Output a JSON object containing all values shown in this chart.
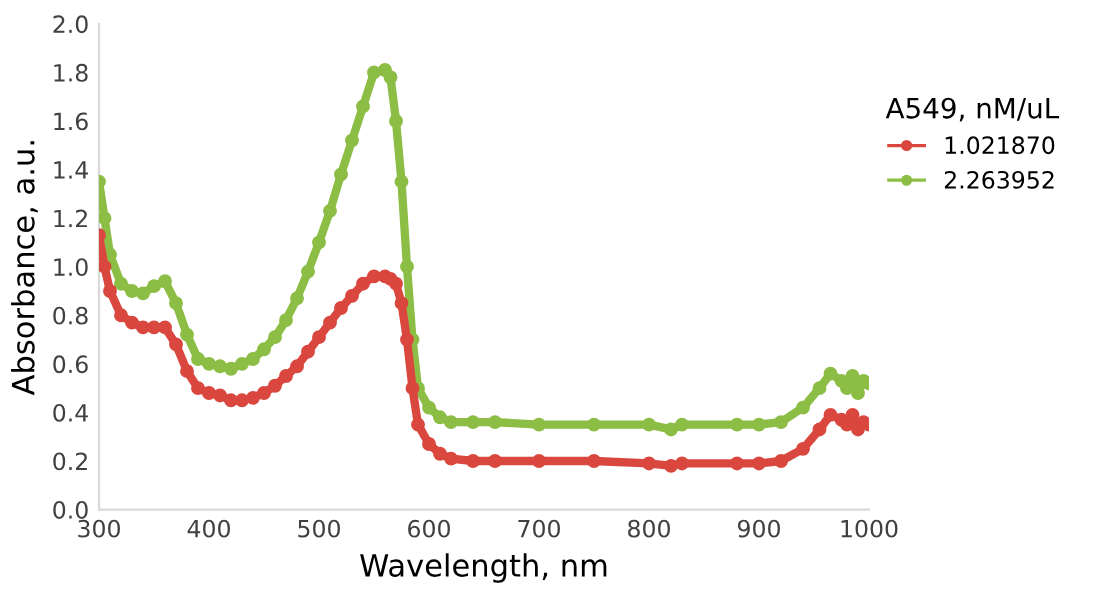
{
  "chart_data": {
    "type": "line",
    "xlabel": "Wavelength, nm",
    "ylabel": "Absorbance, a.u.",
    "legend_title": "A549, nM/uL",
    "legend": "right",
    "marker": "circle",
    "line_style": "solid",
    "grid": false,
    "xlim": [
      300,
      1000
    ],
    "xticks": [
      300,
      400,
      500,
      600,
      700,
      800,
      900,
      1000
    ],
    "ylim": [
      0,
      2
    ],
    "yticks": [
      {
        "value": 0,
        "label": "0.0"
      },
      {
        "value": 0.2,
        "label": "0.2"
      },
      {
        "value": 0.4,
        "label": "0.4"
      },
      {
        "value": 0.6,
        "label": "0.6"
      },
      {
        "value": 0.8,
        "label": "0.8"
      },
      {
        "value": 1.0,
        "label": "1.0"
      },
      {
        "value": 1.2,
        "label": "1.2"
      },
      {
        "value": 1.4,
        "label": "1.4"
      },
      {
        "value": 1.6,
        "label": "1.6"
      },
      {
        "value": 1.8,
        "label": "1.8"
      },
      {
        "value": 2.0,
        "label": "2.0"
      }
    ],
    "x": [
      300,
      305,
      310,
      320,
      330,
      340,
      350,
      360,
      370,
      380,
      390,
      400,
      410,
      420,
      430,
      440,
      450,
      460,
      470,
      480,
      490,
      500,
      510,
      520,
      530,
      540,
      550,
      560,
      565,
      570,
      575,
      580,
      585,
      590,
      600,
      610,
      620,
      640,
      660,
      700,
      750,
      800,
      820,
      830,
      880,
      900,
      920,
      940,
      955,
      965,
      975,
      980,
      985,
      990,
      995,
      1000
    ],
    "series": [
      {
        "name": "1.021870",
        "color": "#d9473f",
        "values": [
          1.13,
          1.0,
          0.9,
          0.8,
          0.77,
          0.75,
          0.75,
          0.75,
          0.68,
          0.57,
          0.5,
          0.48,
          0.47,
          0.45,
          0.45,
          0.46,
          0.48,
          0.51,
          0.55,
          0.59,
          0.65,
          0.71,
          0.77,
          0.83,
          0.88,
          0.93,
          0.96,
          0.96,
          0.95,
          0.93,
          0.85,
          0.7,
          0.5,
          0.35,
          0.27,
          0.23,
          0.21,
          0.2,
          0.2,
          0.2,
          0.2,
          0.19,
          0.18,
          0.19,
          0.19,
          0.19,
          0.2,
          0.25,
          0.33,
          0.39,
          0.37,
          0.35,
          0.39,
          0.33,
          0.36,
          0.35
        ]
      },
      {
        "name": "2.263952",
        "color": "#8cbd45",
        "values": [
          1.35,
          1.2,
          1.05,
          0.93,
          0.9,
          0.89,
          0.92,
          0.94,
          0.85,
          0.72,
          0.62,
          0.6,
          0.59,
          0.58,
          0.6,
          0.62,
          0.66,
          0.71,
          0.78,
          0.87,
          0.98,
          1.1,
          1.23,
          1.38,
          1.52,
          1.66,
          1.8,
          1.81,
          1.78,
          1.6,
          1.35,
          1.0,
          0.7,
          0.5,
          0.42,
          0.38,
          0.36,
          0.36,
          0.36,
          0.35,
          0.35,
          0.35,
          0.33,
          0.35,
          0.35,
          0.35,
          0.36,
          0.42,
          0.5,
          0.56,
          0.53,
          0.5,
          0.55,
          0.48,
          0.53,
          0.52
        ]
      }
    ]
  }
}
